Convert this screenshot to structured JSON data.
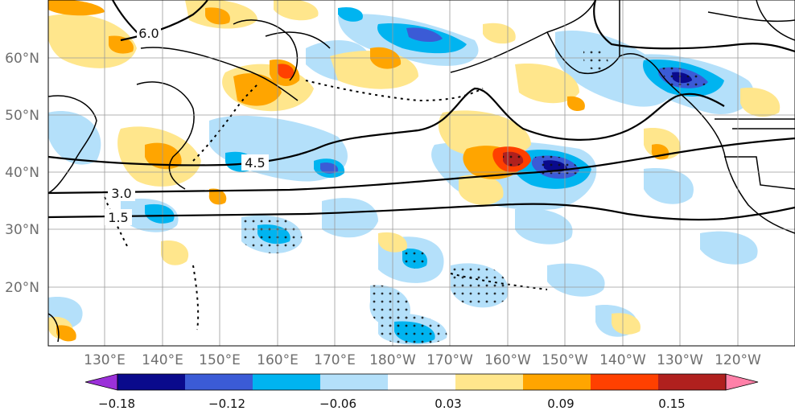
{
  "map": {
    "lat_ticks": [
      "20°N",
      "30°N",
      "40°N",
      "50°N",
      "60°N"
    ],
    "lon_ticks": [
      "130°E",
      "140°E",
      "150°E",
      "160°E",
      "170°E",
      "180°W",
      "170°W",
      "160°W",
      "150°W",
      "140°W",
      "130°W",
      "120°W"
    ],
    "extent": {
      "lon_min": 120,
      "lon_max": 247,
      "lat_min": 10,
      "lat_max": 70
    },
    "contour_labels": [
      "6.0",
      "4.5",
      "3.0",
      "1.5"
    ]
  },
  "colorbar": {
    "tick_labels": [
      "−0.18",
      "−0.12",
      "−0.06",
      "0.03",
      "0.09",
      "0.15"
    ],
    "colors": [
      "#9b30d9",
      "#0a0a8c",
      "#3b5bd6",
      "#00b4f0",
      "#b4e0fa",
      "#ffffff",
      "#ffe68c",
      "#ffa500",
      "#ff4000",
      "#b0201e",
      "#ff80a8"
    ]
  }
}
